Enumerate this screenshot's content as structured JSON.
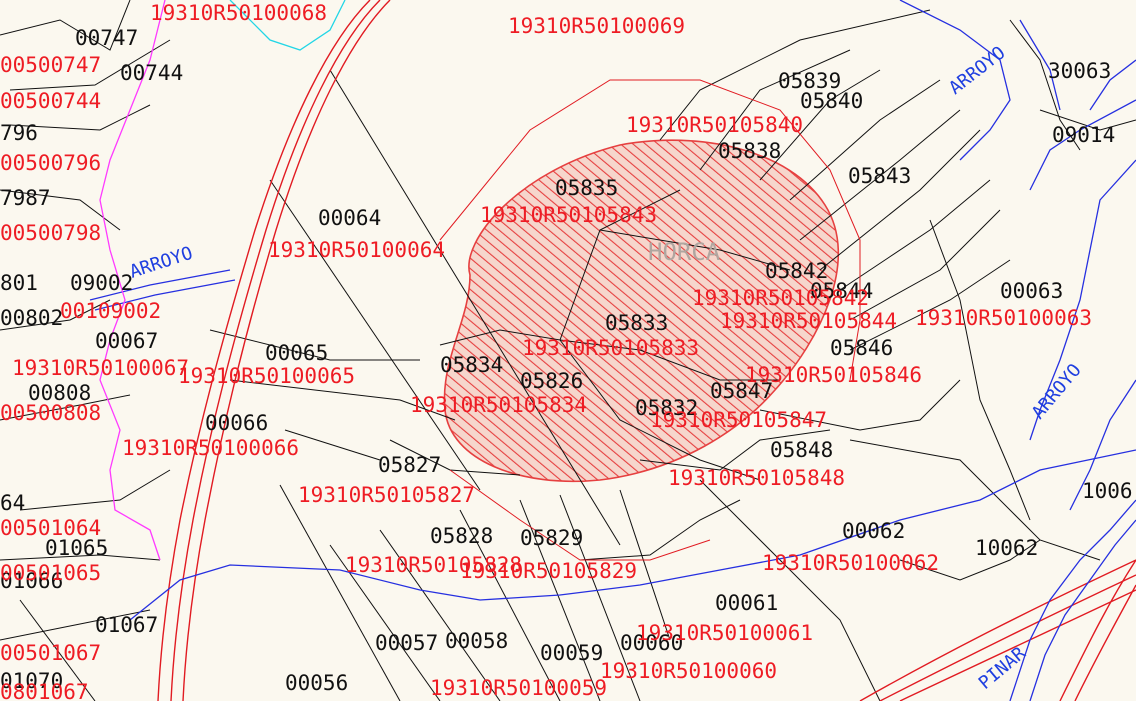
{
  "colors": {
    "background": "#fbf8ef",
    "parcel_line": "#111111",
    "cadastral_label": "#ee1c24",
    "road_line": "#e11b22",
    "river_line": "#2630e0",
    "highlight_line": "#ff3aff",
    "cyan_line": "#22d6e6",
    "hatch_fill": "#e64040"
  },
  "map": {
    "zone_label": "HORCA",
    "river_label": "ARROYO",
    "secondary_label": "PINAR",
    "parcel_numbers": [
      "00747",
      "00744",
      "796",
      "7987",
      "801",
      "00802",
      "00067",
      "00065",
      "00808",
      "00066",
      "64",
      "01065",
      "01066",
      "01067",
      "01070",
      "00064",
      "05839",
      "05840",
      "05838",
      "05835",
      "05843",
      "05842",
      "00063",
      "05844",
      "05833",
      "05834",
      "05826",
      "05847",
      "05832",
      "05848",
      "05827",
      "05828",
      "05829",
      "00062",
      "10062",
      "00061",
      "00057",
      "00058",
      "00059",
      "00060",
      "00056",
      "30063",
      "09014",
      "1006",
      "09002",
      "05846"
    ],
    "cadastral_refs": [
      "19310R50100068",
      "19310R50100069",
      "19310R50100064",
      "19310R50100065",
      "19310R50100066",
      "19310R50105827",
      "19310R50105828",
      "19310R50105829",
      "19310R50100062",
      "19310R50100061",
      "19310R50100060",
      "19310R50100059",
      "19310R50105833",
      "19310R50105834",
      "19310R50105847",
      "19310R50105848",
      "19310R50105840",
      "19310R50105843",
      "19310R50105842",
      "19310R50105844",
      "19310R50105846",
      "19310R50100063",
      "19310R50100067",
      "00500747",
      "00500744",
      "00500796",
      "00500798",
      "00500808",
      "00501064",
      "00501065",
      "00501067",
      "0801067",
      "00109002"
    ]
  }
}
